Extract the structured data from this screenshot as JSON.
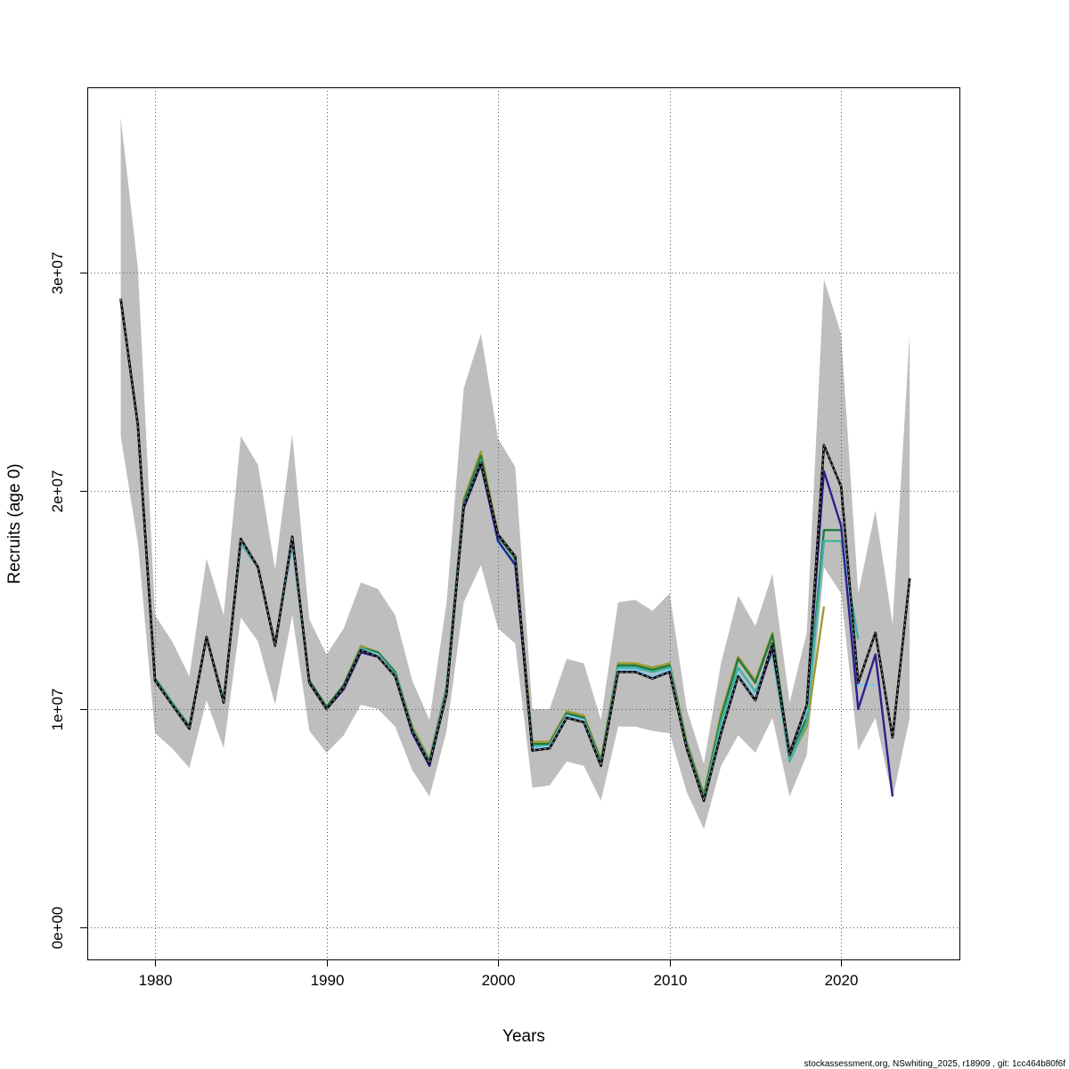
{
  "chart_data": {
    "type": "line",
    "title": "",
    "xlabel": "Years",
    "ylabel": "Recruits (age 0)",
    "xlim": [
      1976.05,
      2026.9
    ],
    "ylim": [
      -1470000,
      38490000
    ],
    "grid": true,
    "x_ticks": [
      1980,
      1990,
      2000,
      2010,
      2020
    ],
    "x_tick_labels": [
      "1980",
      "1990",
      "2000",
      "2010",
      "2020"
    ],
    "y_ticks": [
      0,
      10000000,
      20000000,
      30000000
    ],
    "y_tick_labels": [
      "0e+00",
      "1e+07",
      "2e+07",
      "3e+07"
    ],
    "value_scale": 1000000,
    "x_start": 1978,
    "confidence_band": {
      "color": "#BEBEBE",
      "upper": [
        37.1,
        30.2,
        14.3,
        13.1,
        11.5,
        16.9,
        14.3,
        22.5,
        21.2,
        16.4,
        22.6,
        14.1,
        12.5,
        13.7,
        15.8,
        15.5,
        14.3,
        11.3,
        9.5,
        14.9,
        24.7,
        27.2,
        22.4,
        21.1,
        10.0,
        10.0,
        12.3,
        12.1,
        9.5,
        14.9,
        15.0,
        14.5,
        15.3,
        10.0,
        7.5,
        12.1,
        15.2,
        13.8,
        16.2,
        10.3,
        13.5,
        29.7,
        27.2,
        15.3,
        19.1,
        13.9,
        27.2
      ],
      "lower": [
        22.5,
        17.6,
        8.9,
        8.2,
        7.3,
        10.4,
        8.2,
        14.2,
        13.1,
        10.2,
        14.3,
        9.0,
        8.0,
        8.8,
        10.2,
        10.0,
        9.2,
        7.2,
        6.0,
        9.0,
        14.9,
        16.6,
        13.7,
        13.0,
        6.4,
        6.5,
        7.6,
        7.4,
        5.8,
        9.2,
        9.2,
        9.0,
        8.9,
        6.2,
        4.5,
        7.4,
        8.8,
        8.0,
        9.6,
        6.0,
        7.9,
        16.5,
        15.3,
        8.1,
        9.6,
        5.9,
        9.6
      ]
    },
    "series": [
      {
        "name": "olive",
        "color": "#A09A2E",
        "dashed": false,
        "values": [
          28.8,
          23.1,
          11.4,
          10.3,
          9.2,
          13.3,
          10.4,
          17.6,
          16.5,
          13.0,
          17.6,
          11.3,
          10.1,
          11.1,
          12.9,
          12.6,
          11.7,
          9.2,
          7.7,
          11.0,
          19.6,
          21.8,
          18.0,
          17.0,
          8.5,
          8.5,
          9.9,
          9.7,
          7.7,
          12.1,
          12.1,
          11.9,
          12.1,
          8.5,
          6.1,
          9.8,
          12.4,
          11.3,
          13.5,
          7.7,
          9.2,
          14.7
        ]
      },
      {
        "name": "green",
        "color": "#1E7B3C",
        "dashed": false,
        "values": [
          28.8,
          23.0,
          11.4,
          10.3,
          9.2,
          13.3,
          10.4,
          17.6,
          16.5,
          13.0,
          17.6,
          11.3,
          10.1,
          11.1,
          12.8,
          12.6,
          11.7,
          9.1,
          7.6,
          11.0,
          19.5,
          21.6,
          17.9,
          16.9,
          8.4,
          8.4,
          9.8,
          9.6,
          7.6,
          12.0,
          12.0,
          11.8,
          12.0,
          8.4,
          6.0,
          9.6,
          12.3,
          11.2,
          13.4,
          7.9,
          9.6,
          18.2,
          18.2
        ]
      },
      {
        "name": "teal",
        "color": "#3FB3A3",
        "dashed": false,
        "values": [
          28.8,
          23.0,
          11.3,
          10.3,
          9.1,
          13.3,
          10.4,
          17.6,
          16.5,
          12.9,
          17.6,
          11.2,
          10.0,
          11.0,
          12.8,
          12.5,
          11.6,
          9.1,
          7.6,
          10.9,
          19.4,
          21.4,
          17.6,
          16.7,
          8.3,
          8.3,
          9.7,
          9.5,
          7.5,
          11.9,
          11.9,
          11.7,
          11.9,
          8.3,
          5.9,
          9.4,
          11.9,
          10.8,
          12.6,
          7.6,
          9.4,
          17.7,
          17.7,
          13.2
        ]
      },
      {
        "name": "light-blue",
        "color": "#7EC8EE",
        "dashed": false,
        "values": [
          28.8,
          23.0,
          11.3,
          10.2,
          9.1,
          13.3,
          10.3,
          17.7,
          16.5,
          12.9,
          17.7,
          11.2,
          10.0,
          11.0,
          12.7,
          12.5,
          11.5,
          9.0,
          7.5,
          10.8,
          19.3,
          21.3,
          17.6,
          16.6,
          8.2,
          8.3,
          9.7,
          9.5,
          7.4,
          11.8,
          11.8,
          11.5,
          11.8,
          8.2,
          5.8,
          9.0,
          11.6,
          10.5,
          12.9,
          7.9,
          10.0,
          20.9,
          18.4,
          11.1,
          11.1
        ]
      },
      {
        "name": "navy",
        "color": "#2E1F8C",
        "dashed": false,
        "values": [
          28.8,
          23.0,
          11.3,
          10.2,
          9.1,
          13.3,
          10.3,
          17.8,
          16.5,
          12.9,
          17.9,
          11.2,
          10.0,
          10.9,
          12.6,
          12.4,
          11.5,
          8.9,
          7.4,
          10.7,
          19.2,
          21.2,
          17.7,
          16.6,
          8.1,
          8.2,
          9.6,
          9.4,
          7.4,
          11.7,
          11.7,
          11.4,
          11.7,
          8.2,
          5.8,
          8.9,
          11.5,
          10.4,
          12.8,
          8.0,
          10.2,
          20.9,
          18.4,
          10.0,
          12.5,
          6.0
        ]
      },
      {
        "name": "base",
        "color": "#000000",
        "dashed": true,
        "values": [
          28.8,
          23.0,
          11.3,
          10.2,
          9.1,
          13.3,
          10.3,
          17.8,
          16.5,
          12.9,
          17.9,
          11.2,
          10.0,
          11.0,
          12.7,
          12.4,
          11.5,
          9.0,
          7.5,
          10.7,
          19.3,
          21.3,
          18.0,
          17.0,
          8.1,
          8.2,
          9.6,
          9.4,
          7.4,
          11.7,
          11.7,
          11.4,
          11.7,
          8.2,
          5.8,
          8.9,
          11.5,
          10.4,
          13.0,
          7.9,
          10.2,
          22.1,
          20.2,
          11.2,
          13.5,
          8.7,
          16.0
        ]
      }
    ]
  },
  "footer": "stockassessment.org, NSwhiting_2025, r18909 , git: 1cc464b80f6f"
}
